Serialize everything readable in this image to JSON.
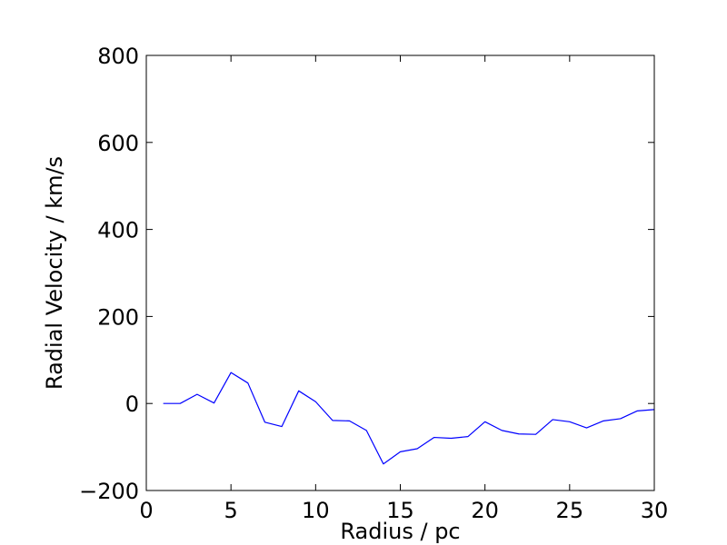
{
  "chart_data": {
    "type": "line",
    "title": "",
    "xlabel": "Radius / pc",
    "ylabel": "Radial Velocity / km/s",
    "xlim": [
      0,
      30
    ],
    "ylim": [
      -200,
      800
    ],
    "xticks": [
      0,
      5,
      10,
      15,
      20,
      25,
      30
    ],
    "yticks": [
      -200,
      0,
      200,
      400,
      600,
      800
    ],
    "xtick_labels": [
      "0",
      "5",
      "10",
      "15",
      "20",
      "25",
      "30"
    ],
    "ytick_labels": [
      "−200",
      "0",
      "200",
      "400",
      "600",
      "800"
    ],
    "grid": false,
    "legend": "none",
    "series": [
      {
        "color": "#0000ff",
        "x": [
          1,
          2,
          3,
          4,
          5,
          6,
          7,
          8,
          9,
          10,
          11,
          12,
          13,
          14,
          15,
          16,
          17,
          18,
          19,
          20,
          21,
          22,
          23,
          24,
          25,
          26,
          27,
          28,
          29,
          30
        ],
        "y": [
          0,
          0,
          21,
          1,
          71,
          47,
          -43,
          -53,
          29,
          4,
          -39,
          -40,
          -62,
          -139,
          -111,
          -104,
          -78,
          -80,
          -76,
          -42,
          -62,
          -70,
          -71,
          -37,
          -42,
          -56,
          -40,
          -35,
          -17,
          -14
        ]
      }
    ]
  }
}
